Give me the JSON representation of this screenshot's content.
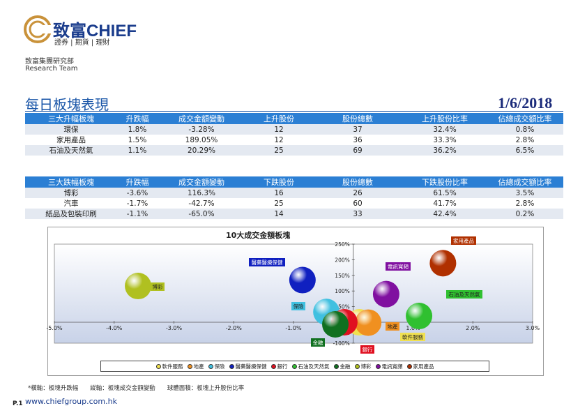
{
  "brand": {
    "name": "致富CHIEF",
    "tagline": "證券 | 期貨 | 理財",
    "group": "致富集團研究部",
    "team": "Research Team"
  },
  "page": {
    "title": "每日板塊表現",
    "date": "1/6/2018",
    "page_no": "P.1",
    "website": "www.chiefgroup.com.hk",
    "footnote": "*橫軸：板塊升跌幅　　縱軸：板塊成交金額變動　　球體面積：板塊上升股份比率"
  },
  "gainers": {
    "headers": [
      "三大升幅板塊",
      "升跌幅",
      "成交金額變動",
      "上升股份",
      "股份總數",
      "上升股份比率",
      "佔總成交額比率"
    ],
    "rows": [
      [
        "環保",
        "1.8%",
        "-3.28%",
        "12",
        "37",
        "32.4%",
        "0.8%"
      ],
      [
        "家用產品",
        "1.5%",
        "189.05%",
        "12",
        "36",
        "33.3%",
        "2.8%"
      ],
      [
        "石油及天然氣",
        "1.1%",
        "20.29%",
        "25",
        "69",
        "36.2%",
        "6.5%"
      ]
    ]
  },
  "losers": {
    "headers": [
      "三大跌幅板塊",
      "升跌幅",
      "成交金額變動",
      "下跌股份",
      "股份總數",
      "下跌股份比率",
      "佔總成交額比率"
    ],
    "rows": [
      [
        "博彩",
        "-3.6%",
        "116.3%",
        "16",
        "26",
        "61.5%",
        "3.5%"
      ],
      [
        "汽車",
        "-1.7%",
        "-42.7%",
        "25",
        "60",
        "41.7%",
        "2.8%"
      ],
      [
        "紙品及包裝印刷",
        "-1.1%",
        "-65.0%",
        "14",
        "33",
        "42.4%",
        "0.2%"
      ]
    ]
  },
  "chart_data": {
    "type": "scatter",
    "title": "10大成交金額板塊",
    "xlabel": "",
    "ylabel": "",
    "xlim": [
      -5.0,
      3.0
    ],
    "ylim": [
      -100,
      250
    ],
    "x_ticks": [
      "-5.0%",
      "-4.0%",
      "-3.0%",
      "-2.0%",
      "-1.0%",
      "0.0%",
      "1.0%",
      "2.0%",
      "3.0%"
    ],
    "y_ticks": [
      "-100%",
      "-50%",
      "0%",
      "50%",
      "100%",
      "150%",
      "200%",
      "250%"
    ],
    "series": [
      {
        "name": "軟件服務",
        "x": 0.1,
        "y": 0,
        "color": "#f0e050"
      },
      {
        "name": "地產",
        "x": 0.25,
        "y": -2,
        "color": "#f09020"
      },
      {
        "name": "保險",
        "x": -0.45,
        "y": 33,
        "color": "#40c0e0"
      },
      {
        "name": "醫藥醫療保健",
        "x": -0.85,
        "y": 135,
        "color": "#1020c0"
      },
      {
        "name": "銀行",
        "x": -0.15,
        "y": 0,
        "color": "#e01020"
      },
      {
        "name": "石油及天然氣",
        "x": 1.1,
        "y": 20,
        "color": "#30c030"
      },
      {
        "name": "金融",
        "x": -0.3,
        "y": -10,
        "color": "#107020"
      },
      {
        "name": "博彩",
        "x": -3.6,
        "y": 116,
        "color": "#b0c020"
      },
      {
        "name": "電訊寬頻",
        "x": 0.55,
        "y": 90,
        "color": "#8010a0"
      },
      {
        "name": "家用產品",
        "x": 1.5,
        "y": 189,
        "color": "#b03000"
      }
    ]
  }
}
